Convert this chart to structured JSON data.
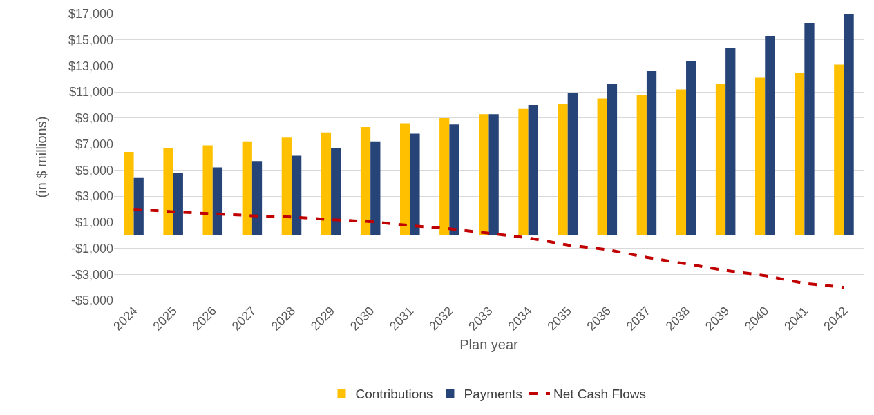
{
  "chart_data": {
    "type": "bar",
    "xlabel": "Plan year",
    "ylabel": "(in $ millions)",
    "categories": [
      "2024",
      "2025",
      "2026",
      "2027",
      "2028",
      "2029",
      "2030",
      "2031",
      "2032",
      "2033",
      "2034",
      "2035",
      "2036",
      "2037",
      "2038",
      "2039",
      "2040",
      "2041",
      "2042"
    ],
    "series": [
      {
        "name": "Contributions",
        "color": "#ffc000",
        "values": [
          6400,
          6700,
          6900,
          7200,
          7500,
          7900,
          8300,
          8600,
          9000,
          9300,
          9700,
          10100,
          10500,
          10800,
          11200,
          11600,
          12100,
          12500,
          13100
        ]
      },
      {
        "name": "Payments",
        "color": "#264478",
        "values": [
          4400,
          4800,
          5200,
          5700,
          6100,
          6700,
          7200,
          7800,
          8500,
          9300,
          10000,
          10900,
          11600,
          12600,
          13400,
          14400,
          15300,
          16300,
          17000
        ]
      },
      {
        "name": "Net Cash Flows",
        "type": "line",
        "color": "#c00000",
        "line_style": "dashed",
        "marker": "none",
        "values": [
          2000,
          1800,
          1650,
          1500,
          1400,
          1200,
          1050,
          750,
          500,
          150,
          -200,
          -750,
          -1100,
          -1700,
          -2200,
          -2700,
          -3100,
          -3700,
          -4000
        ]
      }
    ],
    "ylim": [
      -5000,
      17000
    ],
    "yticks": [
      {
        "value": -5000,
        "label": "-$5,000"
      },
      {
        "value": -3000,
        "label": "-$3,000"
      },
      {
        "value": -1000,
        "label": "-$1,000"
      },
      {
        "value": 1000,
        "label": "$1,000"
      },
      {
        "value": 3000,
        "label": "$3,000"
      },
      {
        "value": 5000,
        "label": "$5,000"
      },
      {
        "value": 7000,
        "label": "$7,000"
      },
      {
        "value": 9000,
        "label": "$9,000"
      },
      {
        "value": 11000,
        "label": "$11,000"
      },
      {
        "value": 13000,
        "label": "$13,000"
      },
      {
        "value": 15000,
        "label": "$15,000"
      },
      {
        "value": 17000,
        "label": "$17,000"
      }
    ],
    "grid": "y",
    "legend": "bottom"
  }
}
